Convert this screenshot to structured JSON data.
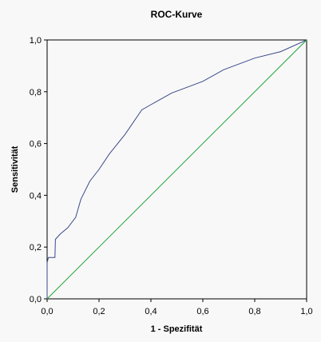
{
  "chart_data": {
    "type": "line",
    "title": "ROC-Kurve",
    "xlabel": "1 - Spezifität",
    "ylabel": "Sensitivität",
    "xlim": [
      0.0,
      1.0
    ],
    "ylim": [
      0.0,
      1.0
    ],
    "x_ticks": [
      "0,0",
      "0,2",
      "0,4",
      "0,6",
      "0,8",
      "1,0"
    ],
    "y_ticks": [
      "0,0",
      "0,2",
      "0,4",
      "0,6",
      "0,8",
      "1,0"
    ],
    "grid": false,
    "legend": "none",
    "series": [
      {
        "color": "#3a4a8a",
        "points": [
          [
            0.0,
            0.0
          ],
          [
            0.0,
            0.14
          ],
          [
            0.005,
            0.16
          ],
          [
            0.03,
            0.16
          ],
          [
            0.032,
            0.23
          ],
          [
            0.05,
            0.25
          ],
          [
            0.08,
            0.275
          ],
          [
            0.11,
            0.315
          ],
          [
            0.13,
            0.385
          ],
          [
            0.165,
            0.455
          ],
          [
            0.2,
            0.5
          ],
          [
            0.24,
            0.56
          ],
          [
            0.3,
            0.635
          ],
          [
            0.365,
            0.73
          ],
          [
            0.4,
            0.75
          ],
          [
            0.48,
            0.795
          ],
          [
            0.6,
            0.84
          ],
          [
            0.68,
            0.885
          ],
          [
            0.8,
            0.93
          ],
          [
            0.9,
            0.955
          ],
          [
            1.0,
            1.0
          ]
        ]
      },
      {
        "color": "#22a33a",
        "points": [
          [
            0.0,
            0.0
          ],
          [
            1.0,
            1.0
          ]
        ]
      }
    ]
  }
}
